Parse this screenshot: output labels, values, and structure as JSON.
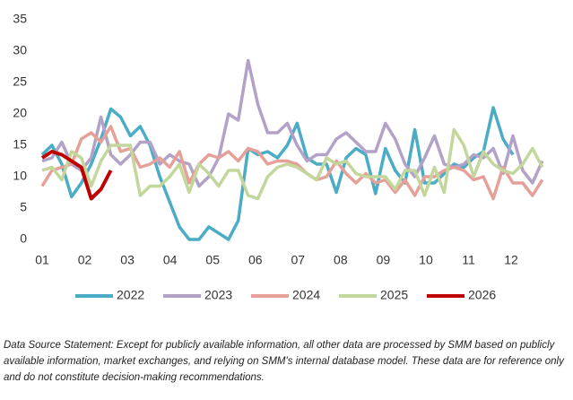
{
  "chart_data": {
    "type": "line",
    "x": [
      1.0,
      1.23,
      1.46,
      1.69,
      1.92,
      2.15,
      2.38,
      2.61,
      2.84,
      3.07,
      3.3,
      3.53,
      3.76,
      3.99,
      4.22,
      4.45,
      4.68,
      4.91,
      5.14,
      5.37,
      5.6,
      5.83,
      6.06,
      6.29,
      6.52,
      6.75,
      6.98,
      7.21,
      7.44,
      7.67,
      7.9,
      8.13,
      8.36,
      8.59,
      8.82,
      9.05,
      9.28,
      9.51,
      9.74,
      9.97,
      10.2,
      10.43,
      10.66,
      10.89,
      11.12,
      11.35,
      11.58,
      11.81,
      12.04,
      12.27,
      12.5,
      12.73
    ],
    "xlim": [
      1,
      13.0
    ],
    "xticks": [
      {
        "value": 1,
        "label": "01"
      },
      {
        "value": 2,
        "label": "02"
      },
      {
        "value": 3,
        "label": "03"
      },
      {
        "value": 4,
        "label": "04"
      },
      {
        "value": 5,
        "label": "05"
      },
      {
        "value": 6,
        "label": "06"
      },
      {
        "value": 7,
        "label": "07"
      },
      {
        "value": 8,
        "label": "08"
      },
      {
        "value": 9,
        "label": "09"
      },
      {
        "value": 10,
        "label": "10"
      },
      {
        "value": 11,
        "label": "11"
      },
      {
        "value": 12,
        "label": "12"
      }
    ],
    "ylim": [
      0,
      35
    ],
    "yticks": [
      0,
      5,
      10,
      15,
      20,
      25,
      30,
      35
    ],
    "legend": "bottom",
    "series": [
      {
        "name": "2022",
        "color": "#4bacc6",
        "values": [
          13.5,
          15,
          12,
          6.8,
          9,
          12,
          16,
          20.8,
          19.5,
          16.5,
          18,
          15,
          10,
          6,
          2,
          0,
          0,
          2,
          1,
          0,
          3,
          14.5,
          13.5,
          14,
          13,
          15,
          18.5,
          13,
          12,
          12,
          7.5,
          13,
          14.5,
          13.5,
          7.3,
          14.5,
          11,
          9,
          17.5,
          9,
          9,
          10.5,
          12,
          11.5,
          13,
          14,
          21,
          16,
          13.5,
          null,
          null,
          null
        ]
      },
      {
        "name": "2023",
        "color": "#b3a2c7",
        "values": [
          12.5,
          13,
          15.5,
          12,
          11,
          13,
          19.5,
          13.5,
          12,
          13.5,
          15.5,
          15.5,
          12,
          13.5,
          12.5,
          12,
          8.5,
          10,
          13,
          20,
          19,
          28.5,
          21.5,
          17,
          17,
          18.5,
          15,
          12.5,
          13.5,
          13.5,
          16,
          17,
          15.5,
          14,
          14,
          18.5,
          16,
          12,
          10,
          13,
          16.5,
          12,
          11.5,
          12,
          13.5,
          13,
          14.5,
          10.5,
          16.5,
          11,
          9,
          12.5
        ]
      },
      {
        "name": "2024",
        "color": "#e6a09a",
        "values": [
          8.5,
          11,
          11.5,
          12,
          16,
          17,
          15.5,
          18,
          14,
          14.5,
          11.5,
          12,
          13,
          11.5,
          14,
          9,
          12,
          13.5,
          13,
          14,
          12.5,
          14.5,
          14,
          12,
          12.5,
          12.5,
          12,
          10.5,
          9.5,
          10,
          12.5,
          10.5,
          9,
          10.5,
          9,
          9.5,
          7.5,
          9.5,
          7,
          10,
          10,
          11,
          11.5,
          11,
          9.5,
          10,
          6.5,
          11.5,
          9,
          9,
          7,
          9.5
        ]
      },
      {
        "name": "2025",
        "color": "#c3d69b",
        "values": [
          11,
          11.5,
          9.5,
          14,
          13,
          8.5,
          12.5,
          15,
          15,
          15,
          7,
          8.5,
          8.5,
          10,
          12,
          7.5,
          12,
          10.5,
          8.5,
          11,
          11,
          7,
          6.5,
          10,
          11.5,
          12,
          11.5,
          10.5,
          9.5,
          13,
          12,
          12.5,
          10.5,
          10,
          10,
          10,
          8,
          11,
          11,
          7,
          11.5,
          7.5,
          17.5,
          15,
          10,
          14,
          12,
          11,
          10.5,
          12,
          14.5,
          11.5
        ]
      },
      {
        "name": "2026",
        "color": "#c00000",
        "values": [
          13,
          14,
          13.5,
          12.5,
          11.5,
          6.5,
          8,
          11,
          null,
          null,
          null,
          null,
          null,
          null,
          null,
          null,
          null,
          null,
          null,
          null,
          null,
          null,
          null,
          null,
          null,
          null,
          null,
          null,
          null,
          null,
          null,
          null,
          null,
          null,
          null,
          null,
          null,
          null,
          null,
          null,
          null,
          null,
          null,
          null,
          null,
          null,
          null,
          null,
          null,
          null,
          null,
          null
        ]
      }
    ],
    "note": "Data Source Statement: Except for publicly available information, all other data are processed by SMM based on publicly available information, market exchanges, and relying on SMM's internal database model. These data are for reference only and do not constitute decision-making recommendations."
  }
}
